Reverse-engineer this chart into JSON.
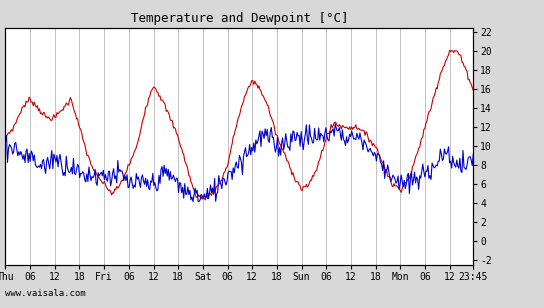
{
  "title": "Temperature and Dewpoint [°C]",
  "ylabel_right_ticks": [
    -2,
    0,
    2,
    4,
    6,
    8,
    10,
    12,
    14,
    16,
    18,
    20,
    22
  ],
  "ylim": [
    -2.5,
    22.5
  ],
  "xlabel_ticks_labels": [
    "Thu",
    "06",
    "12",
    "18",
    "Fri",
    "06",
    "12",
    "18",
    "Sat",
    "06",
    "12",
    "18",
    "Sun",
    "06",
    "12",
    "18",
    "Mon",
    "06",
    "12",
    "23:45"
  ],
  "xlabel_ticks_positions": [
    0,
    6,
    12,
    18,
    24,
    30,
    36,
    42,
    48,
    54,
    60,
    66,
    72,
    78,
    84,
    90,
    96,
    102,
    108,
    113.75
  ],
  "total_hours": 113.75,
  "background_color": "#d8d8d8",
  "plot_bg_color": "#ffffff",
  "grid_color": "#aaaaaa",
  "temp_color": "#cc0000",
  "dewp_color": "#0000cc",
  "watermark": "www.vaisala.com",
  "font_name": "monospace"
}
